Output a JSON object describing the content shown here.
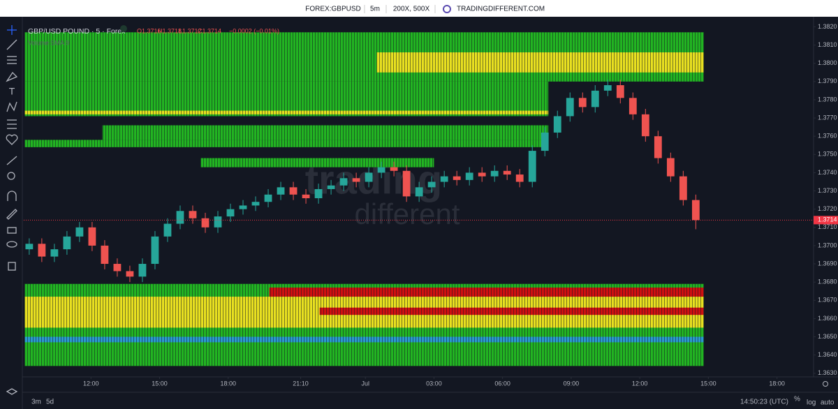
{
  "header": {
    "symbol": "FOREX:GBPUSD",
    "interval": "5m",
    "zoom": "200X, 500X",
    "site": "TRADINGDIFFERENT.COM"
  },
  "legend": {
    "name": "GBP/USD POUND · 5 · Forex",
    "open": "O1.3716",
    "high": "H1.3718",
    "low": "L1.3712",
    "close": "C1.3714",
    "change": "−0.0002 (−0.01%)",
    "indicator": "Volume SMA 9"
  },
  "watermark": {
    "line1": "trading",
    "line2": "different"
  },
  "footer": {
    "range1": "3m",
    "range2": "5d",
    "clock": "14:50:23 (UTC)",
    "percent": "%",
    "log": "log",
    "auto": "auto"
  },
  "chart_data": {
    "type": "candlestick",
    "up_color": "#26a69a",
    "down_color": "#ef5350",
    "x": [
      9.3,
      9.85,
      10.4,
      10.95,
      11.5,
      12.05,
      12.6,
      13.15,
      13.7,
      14.25,
      14.8,
      15.35,
      15.9,
      16.45,
      17.0,
      17.55,
      18.1,
      18.65,
      19.2,
      19.75,
      20.3,
      20.85,
      21.4,
      21.95,
      22.5,
      23.05,
      23.6,
      24.15,
      24.7,
      25.25,
      25.8,
      26.35,
      26.9,
      27.45,
      28.0,
      28.55,
      29.1,
      29.65,
      30.2,
      30.75,
      31.3,
      31.85,
      32.4,
      32.95,
      33.5,
      34.05,
      34.6,
      35.15,
      35.7,
      36.25,
      36.8,
      37.35,
      37.9,
      38.45
    ],
    "open": [
      1.3698,
      1.3701,
      1.3694,
      1.3698,
      1.3705,
      1.371,
      1.37,
      1.369,
      1.3686,
      1.3683,
      1.369,
      1.3705,
      1.3712,
      1.3719,
      1.3715,
      1.371,
      1.3716,
      1.372,
      1.3722,
      1.3724,
      1.3728,
      1.3732,
      1.3728,
      1.3726,
      1.3731,
      1.3733,
      1.3737,
      1.3735,
      1.374,
      1.3743,
      1.3741,
      1.3727,
      1.3732,
      1.3735,
      1.3738,
      1.3736,
      1.374,
      1.3738,
      1.3741,
      1.3739,
      1.3735,
      1.3752,
      1.3762,
      1.3771,
      1.3781,
      1.3776,
      1.3785,
      1.3788,
      1.3781,
      1.3772,
      1.376,
      1.3748,
      1.3738,
      1.3725
    ],
    "high": [
      1.3704,
      1.3704,
      1.3701,
      1.3708,
      1.3713,
      1.3713,
      1.3703,
      1.3693,
      1.3689,
      1.3693,
      1.3708,
      1.3715,
      1.3722,
      1.3722,
      1.3718,
      1.3719,
      1.3723,
      1.3725,
      1.3727,
      1.3731,
      1.3735,
      1.3735,
      1.3731,
      1.3734,
      1.3736,
      1.374,
      1.374,
      1.3743,
      1.3746,
      1.3746,
      1.3744,
      1.3735,
      1.3738,
      1.3741,
      1.3741,
      1.3743,
      1.3743,
      1.3744,
      1.3744,
      1.3742,
      1.3755,
      1.3765,
      1.3774,
      1.3784,
      1.3784,
      1.3788,
      1.3791,
      1.3791,
      1.3784,
      1.3775,
      1.3763,
      1.3751,
      1.3741,
      1.3728
    ],
    "low": [
      1.3695,
      1.3691,
      1.3691,
      1.3695,
      1.3702,
      1.3697,
      1.3687,
      1.3683,
      1.368,
      1.368,
      1.3687,
      1.3702,
      1.3709,
      1.3712,
      1.3707,
      1.3707,
      1.3713,
      1.3717,
      1.3719,
      1.3721,
      1.3725,
      1.3725,
      1.3723,
      1.3723,
      1.3728,
      1.373,
      1.3732,
      1.3732,
      1.3737,
      1.3738,
      1.3724,
      1.3724,
      1.3729,
      1.3732,
      1.3733,
      1.3733,
      1.3735,
      1.3735,
      1.3736,
      1.3732,
      1.3732,
      1.3749,
      1.3759,
      1.3768,
      1.3773,
      1.3773,
      1.3782,
      1.3778,
      1.3769,
      1.3757,
      1.3745,
      1.3735,
      1.3722,
      1.3709
    ],
    "close": [
      1.3701,
      1.3694,
      1.3698,
      1.3705,
      1.371,
      1.37,
      1.369,
      1.3686,
      1.3683,
      1.369,
      1.3705,
      1.3712,
      1.3719,
      1.3715,
      1.371,
      1.3716,
      1.372,
      1.3722,
      1.3724,
      1.3728,
      1.3732,
      1.3728,
      1.3726,
      1.3731,
      1.3733,
      1.3737,
      1.3735,
      1.374,
      1.3743,
      1.3741,
      1.3727,
      1.3732,
      1.3735,
      1.3738,
      1.3736,
      1.374,
      1.3738,
      1.3741,
      1.3739,
      1.3735,
      1.3752,
      1.3762,
      1.3771,
      1.3781,
      1.3776,
      1.3785,
      1.3788,
      1.3781,
      1.3772,
      1.376,
      1.3748,
      1.3738,
      1.3725,
      1.3714
    ],
    "zones": [
      {
        "start": 9.1,
        "end": 38.8,
        "low": 1.379,
        "high": 1.3817,
        "color": "#22b422"
      },
      {
        "start": 24.5,
        "end": 38.8,
        "low": 1.3795,
        "high": 1.3806,
        "color": "#e8e020"
      },
      {
        "start": 9.1,
        "end": 32.0,
        "low": 1.3771,
        "high": 1.379,
        "color": "#22b422"
      },
      {
        "start": 9.1,
        "end": 32.0,
        "low": 1.3772,
        "high": 1.3774,
        "color": "#e8e020"
      },
      {
        "start": 12.5,
        "end": 32.0,
        "low": 1.3758,
        "high": 1.3766,
        "color": "#22b422"
      },
      {
        "start": 9.1,
        "end": 32.0,
        "low": 1.3754,
        "high": 1.3758,
        "color": "#22b422"
      },
      {
        "start": 16.8,
        "end": 27.0,
        "low": 1.3743,
        "high": 1.3748,
        "color": "#22b422"
      },
      {
        "start": 9.1,
        "end": 38.8,
        "low": 1.3634,
        "high": 1.3679,
        "color": "#22b422"
      },
      {
        "start": 9.1,
        "end": 38.8,
        "low": 1.3655,
        "high": 1.3672,
        "color": "#e8e020"
      },
      {
        "start": 19.8,
        "end": 38.8,
        "low": 1.3672,
        "high": 1.3677,
        "color": "#d01010"
      },
      {
        "start": 22.0,
        "end": 38.8,
        "low": 1.3662,
        "high": 1.3666,
        "color": "#d01010"
      },
      {
        "start": 9.1,
        "end": 38.8,
        "low": 1.3647,
        "high": 1.365,
        "color": "#2a9ad0"
      }
    ],
    "last_price": 1.3714,
    "last_color": "#f23645",
    "xlim": [
      9.06,
      43.6
    ],
    "ylim": [
      1.3628,
      1.3824
    ],
    "xticks": [
      {
        "value": 12,
        "label": "12:00"
      },
      {
        "value": 15,
        "label": "15:00"
      },
      {
        "value": 18,
        "label": "18:00"
      },
      {
        "value": 21.17,
        "label": "21:10"
      },
      {
        "value": 24,
        "label": "Jul"
      },
      {
        "value": 27,
        "label": "03:00"
      },
      {
        "value": 30,
        "label": "06:00"
      },
      {
        "value": 33,
        "label": "09:00"
      },
      {
        "value": 36,
        "label": "12:00"
      },
      {
        "value": 39,
        "label": "15:00"
      },
      {
        "value": 42,
        "label": "18:00"
      }
    ],
    "yticks": [
      {
        "value": 1.363,
        "label": "1.3630"
      },
      {
        "value": 1.364,
        "label": "1.3640"
      },
      {
        "value": 1.365,
        "label": "1.3650"
      },
      {
        "value": 1.366,
        "label": "1.3660"
      },
      {
        "value": 1.367,
        "label": "1.3670"
      },
      {
        "value": 1.368,
        "label": "1.3680"
      },
      {
        "value": 1.369,
        "label": "1.3690"
      },
      {
        "value": 1.37,
        "label": "1.3700"
      },
      {
        "value": 1.371,
        "label": "1.3710"
      },
      {
        "value": 1.372,
        "label": "1.3720"
      },
      {
        "value": 1.373,
        "label": "1.3730"
      },
      {
        "value": 1.374,
        "label": "1.3740"
      },
      {
        "value": 1.375,
        "label": "1.3750"
      },
      {
        "value": 1.376,
        "label": "1.3760"
      },
      {
        "value": 1.377,
        "label": "1.3770"
      },
      {
        "value": 1.378,
        "label": "1.3780"
      },
      {
        "value": 1.379,
        "label": "1.3790"
      },
      {
        "value": 1.38,
        "label": "1.3800"
      },
      {
        "value": 1.381,
        "label": "1.3810"
      },
      {
        "value": 1.382,
        "label": "1.3820"
      }
    ]
  }
}
